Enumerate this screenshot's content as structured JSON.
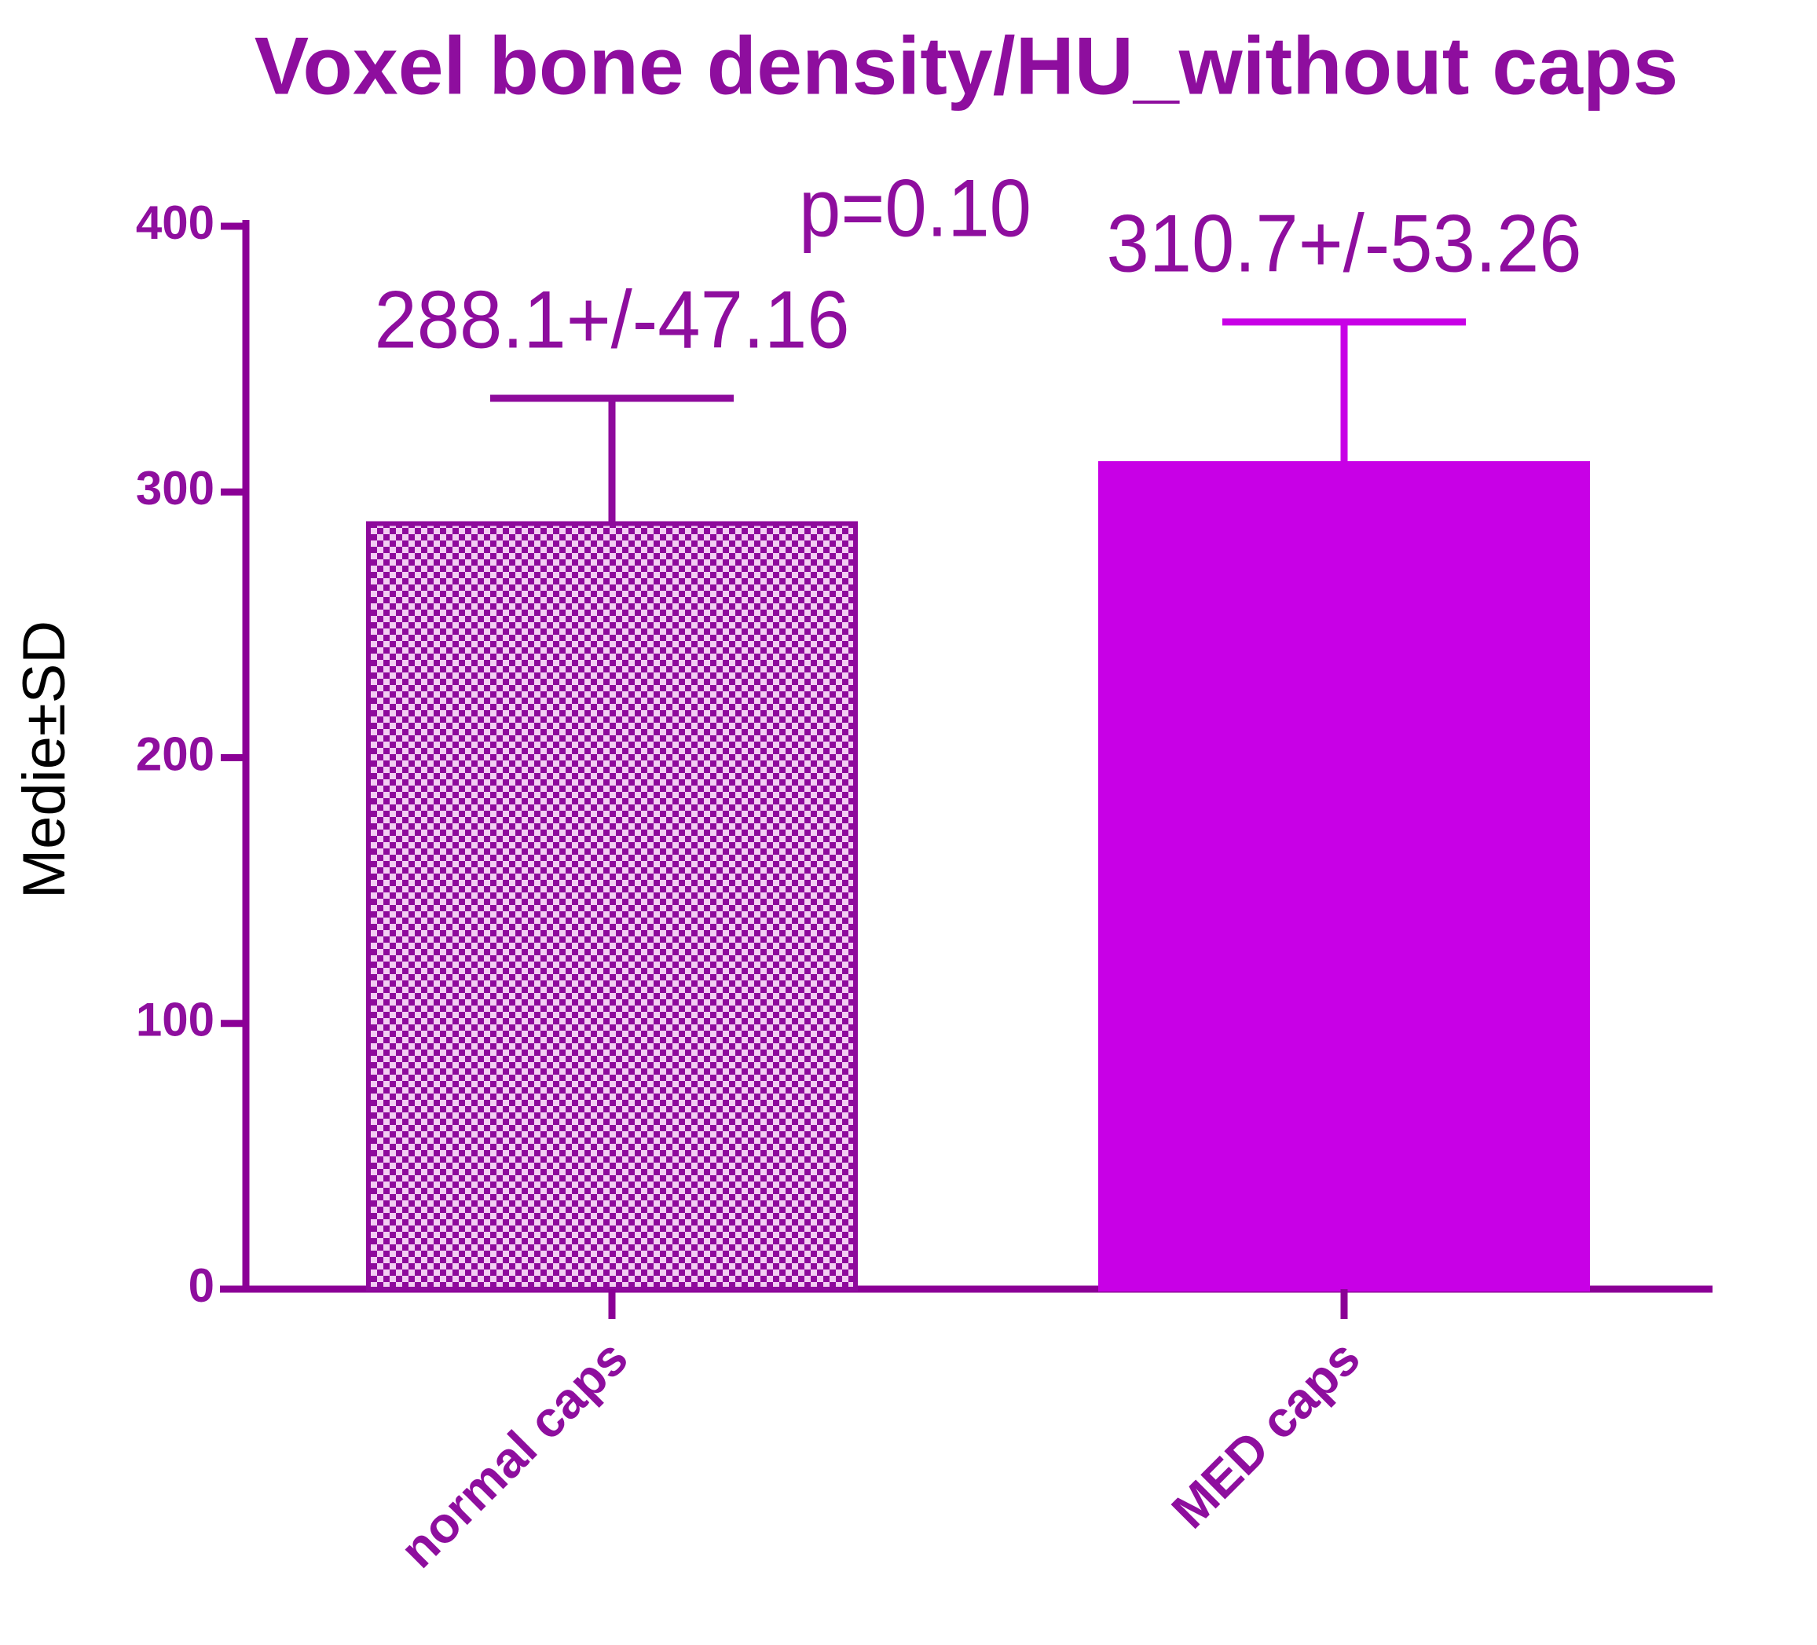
{
  "chart_data": {
    "type": "bar",
    "title": "Voxel bone density/HU_without caps",
    "y_label": "Medie±SD",
    "annotation": "p=0.10",
    "categories": [
      "normal caps",
      "MED caps"
    ],
    "values": [
      288.1,
      310.7
    ],
    "errors": [
      47.16,
      53.26
    ],
    "value_labels": [
      "288.1+/-47.16",
      "310.7+/-53.26"
    ],
    "colors": [
      "#8e0a9c",
      "#c800e6"
    ],
    "patterns": [
      "checkerboard",
      "solid"
    ],
    "axis_color": "#8b0096",
    "ylim": [
      0,
      400
    ],
    "yticks": [
      0,
      100,
      200,
      300,
      400
    ]
  }
}
